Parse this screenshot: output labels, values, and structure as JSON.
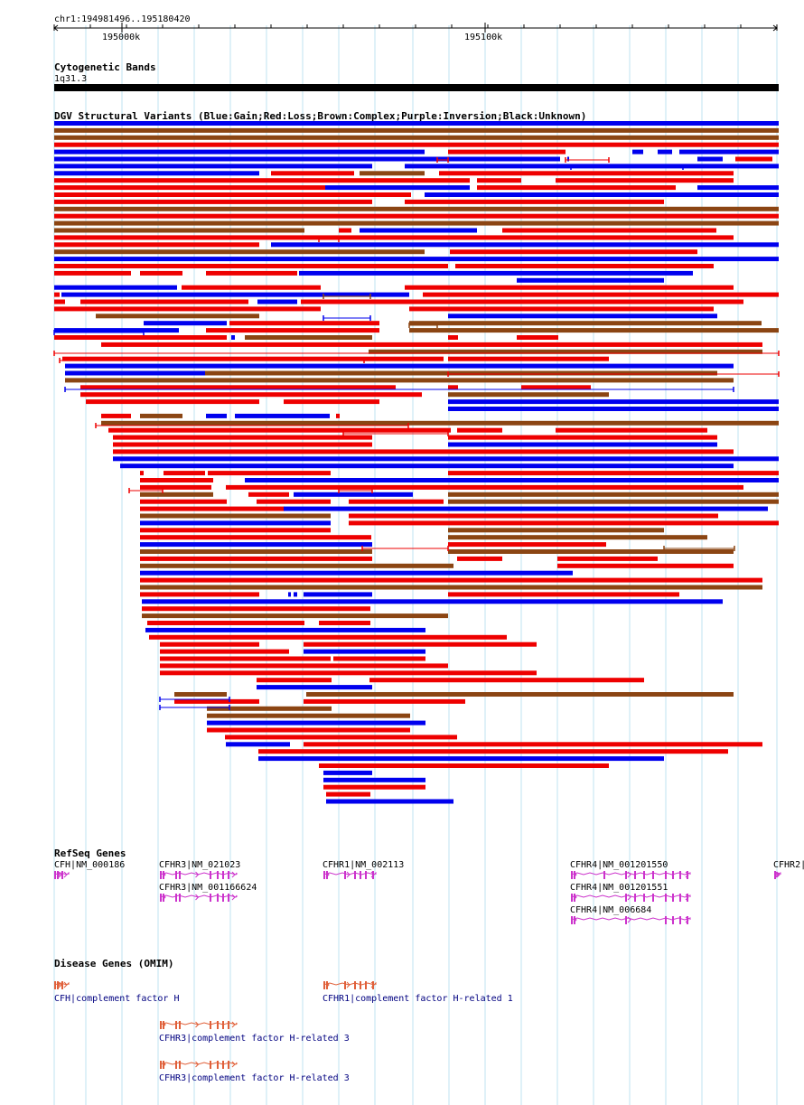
{
  "ruler": {
    "position": "chr1:194981496..195180420",
    "tick_major_1": "195000k",
    "tick_major_2": "195100k"
  },
  "cytoband": {
    "title": "Cytogenetic Bands",
    "band": "1q31.3"
  },
  "dgv": {
    "title": "DGV Structural Variants (Blue:Gain;Red:Loss;Brown:Complex;Purple:Inversion;Black:Unknown)",
    "colors": {
      "gain": "#0000ee",
      "loss": "#ee0000",
      "complex": "#8b4513"
    }
  },
  "refseq": {
    "title": "RefSeq Genes",
    "genes": [
      "CFH|NM_000186",
      "CFHR3|NM_021023",
      "CFHR3|NM_001166624",
      "CFHR1|NM_002113",
      "CFHR4|NM_001201550",
      "CFHR4|NM_001201551",
      "CFHR4|NM_006684",
      "CFHR2|"
    ],
    "color": "#cc33cc"
  },
  "omim": {
    "title": "Disease Genes (OMIM)",
    "genes": [
      "CFH|complement factor H",
      "CFHR1|complement factor H-related 1",
      "CFHR3|complement factor H-related 3",
      "CFHR3|complement factor H-related 3"
    ],
    "color": "#e0603a",
    "label_color": "#000080"
  }
}
